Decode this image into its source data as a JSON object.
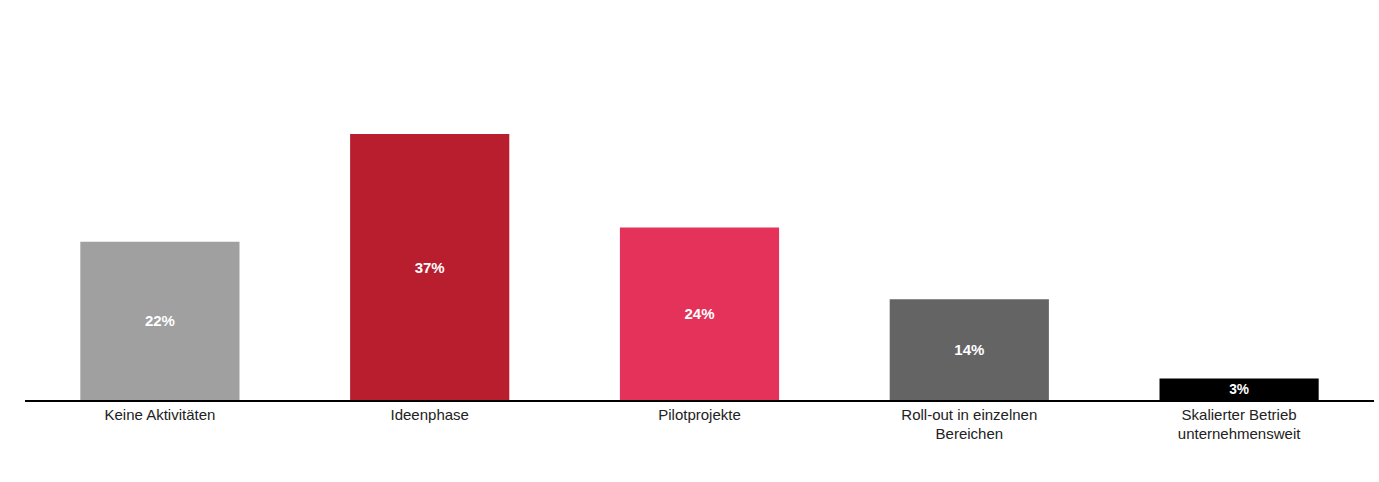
{
  "chart_data": {
    "type": "bar",
    "categories": [
      "Keine Aktivitäten",
      "Ideenphase",
      "Pilotprojekte",
      "Roll-out in einzelnen Bereichen",
      "Skalierter Betrieb unternehmensweit"
    ],
    "values": [
      22,
      37,
      24,
      14,
      3
    ],
    "value_labels": [
      "22%",
      "37%",
      "24%",
      "14%",
      "3%"
    ],
    "colors": [
      "#a0a0a0",
      "#b81e2d",
      "#e5325a",
      "#646464",
      "#000000"
    ],
    "data_labels": true,
    "tick_labels": "x",
    "grid": false
  }
}
